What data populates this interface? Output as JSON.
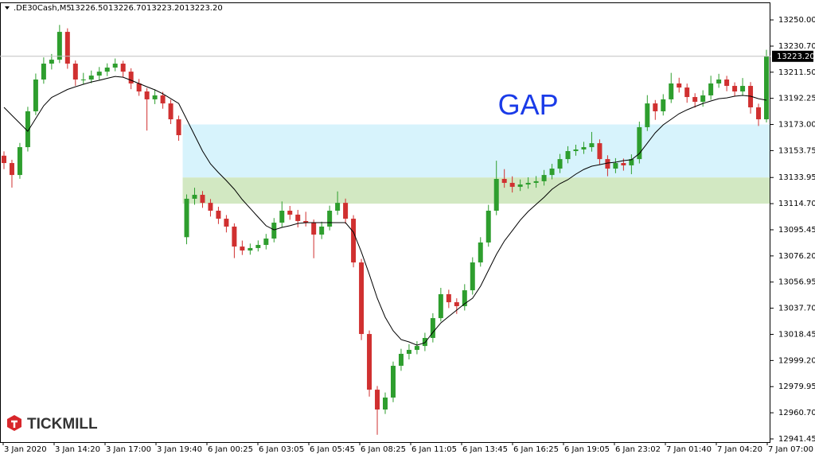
{
  "chart_data": {
    "type": "candlestick",
    "symbol": ".DE30Cash,M5",
    "header_values": [
      "13226.50",
      "13226.70",
      "13223.20",
      "13223.20"
    ],
    "brand": "TICKMILL",
    "ylim": [
      12939.1,
      13262.9
    ],
    "yticks": [
      {
        "value": 13250,
        "label": "13250.00"
      },
      {
        "value": 13230.7,
        "label": "13230.70"
      },
      {
        "value": 13211.5,
        "label": "13211.50"
      },
      13192.25,
      {
        "value": 13173,
        "label": "13173.00"
      },
      {
        "value": 13153.75,
        "label": "13153.75"
      },
      13133.95,
      {
        "value": 13114.7,
        "label": "13114.70"
      },
      13095.45,
      {
        "value": 13076.2,
        "label": "13076.20"
      },
      13056.95,
      {
        "value": 13037.7,
        "label": "13037.70"
      },
      {
        "value": 13018.45,
        "label": "13018.45"
      },
      {
        "value": 12999.2,
        "label": "12999.20"
      },
      {
        "value": 12979.95,
        "label": "12979.95"
      },
      {
        "value": 12960.7,
        "label": "12960.70"
      },
      12941.45
    ],
    "categories": [
      "3 Jan 2020",
      "3 Jan 14:20",
      "3 Jan 17:00",
      "3 Jan 19:40",
      "6 Jan 00:25",
      "6 Jan 03:05",
      "6 Jan 05:45",
      "6 Jan 08:25",
      "6 Jan 11:05",
      "6 Jan 13:45",
      "6 Jan 16:25",
      "6 Jan 19:05",
      "6 Jan 23:02",
      "7 Jan 01:40",
      "7 Jan 04:20",
      "7 Jan 07:00"
    ],
    "up_color": "#2e9e2e",
    "down_color": "#d03030",
    "ma_color": "#000000",
    "last_price": {
      "value": 13223.2,
      "label": "13223.20"
    },
    "zone_start": 23,
    "zones": [
      {
        "from": 13133.95,
        "to": 13173,
        "color": "#d7f3fc"
      },
      {
        "from": 13114.7,
        "to": 13133.95,
        "color": "#d2e8c2"
      }
    ],
    "annotations": [
      {
        "text": "GAP",
        "x": 66,
        "y": 13186,
        "color": "#1a3be8"
      }
    ],
    "ohlc": [
      [
        13150.0,
        13153.2,
        13140.1,
        13144.6
      ],
      [
        13144.6,
        13147.0,
        13126.5,
        13135.8
      ],
      [
        13135.8,
        13159.4,
        13133.0,
        13156.3
      ],
      [
        13156.3,
        13186.0,
        13153.1,
        13182.7
      ],
      [
        13182.7,
        13210.5,
        13179.9,
        13206.1
      ],
      [
        13206.1,
        13222.4,
        13203.0,
        13217.8
      ],
      [
        13217.8,
        13224.9,
        13213.5,
        13220.7
      ],
      [
        13220.7,
        13246.3,
        13218.2,
        13241.2
      ],
      [
        13241.2,
        13243.8,
        13214.0,
        13217.8
      ],
      [
        13217.8,
        13220.1,
        13201.5,
        13206.1
      ],
      [
        13206.1,
        13211.0,
        13202.3,
        13206.1
      ],
      [
        13206.1,
        13212.7,
        13203.4,
        13209.0
      ],
      [
        13209.0,
        13215.3,
        13205.8,
        13211.9
      ],
      [
        13211.9,
        13218.0,
        13208.6,
        13214.9
      ],
      [
        13214.9,
        13221.6,
        13212.2,
        13217.8
      ],
      [
        13217.8,
        13219.9,
        13208.1,
        13211.9
      ],
      [
        13211.9,
        13214.4,
        13199.0,
        13203.2
      ],
      [
        13203.2,
        13206.5,
        13194.1,
        13197.3
      ],
      [
        13197.3,
        13199.8,
        13168.5,
        13191.5
      ],
      [
        13191.5,
        13198.9,
        13188.0,
        13194.4
      ],
      [
        13194.4,
        13197.0,
        13184.6,
        13188.5
      ],
      [
        13188.5,
        13191.2,
        13173.3,
        13176.8
      ],
      [
        13176.8,
        13179.5,
        13161.0,
        13165.1
      ],
      [
        13090.0,
        13121.5,
        13084.8,
        13118.3
      ],
      [
        13118.3,
        13126.4,
        13113.9,
        13121.2
      ],
      [
        13121.2,
        13124.0,
        13111.6,
        13115.3
      ],
      [
        13115.3,
        13118.1,
        13105.2,
        13109.5
      ],
      [
        13109.5,
        13112.4,
        13099.7,
        13103.6
      ],
      [
        13103.6,
        13106.3,
        13093.5,
        13097.8
      ],
      [
        13097.8,
        13100.2,
        13074.6,
        13083.1
      ],
      [
        13083.1,
        13087.5,
        13076.9,
        13080.2
      ],
      [
        13080.2,
        13085.3,
        13077.1,
        13082.0
      ],
      [
        13082.0,
        13087.6,
        13079.5,
        13084.3
      ],
      [
        13084.3,
        13092.4,
        13081.0,
        13089.0
      ],
      [
        13089.0,
        13104.1,
        13086.2,
        13100.7
      ],
      [
        13100.7,
        13116.3,
        13097.5,
        13109.5
      ],
      [
        13109.5,
        13113.0,
        13102.8,
        13106.6
      ],
      [
        13106.6,
        13110.1,
        13097.2,
        13101.9
      ],
      [
        13101.9,
        13108.7,
        13097.9,
        13100.7
      ],
      [
        13100.7,
        13103.0,
        13074.5,
        13091.9
      ],
      [
        13091.9,
        13101.4,
        13088.6,
        13097.8
      ],
      [
        13097.8,
        13113.2,
        13095.0,
        13109.5
      ],
      [
        13109.5,
        13123.7,
        13106.4,
        13115.3
      ],
      [
        13115.3,
        13118.4,
        13099.9,
        13103.6
      ],
      [
        13103.6,
        13106.2,
        13067.8,
        13071.4
      ],
      [
        13071.4,
        13074.0,
        13014.2,
        13018.7
      ],
      [
        13018.7,
        13021.3,
        12972.6,
        12977.7
      ],
      [
        12977.7,
        12980.4,
        12944.5,
        12963.1
      ],
      [
        12963.1,
        12975.6,
        12959.8,
        12971.9
      ],
      [
        12971.9,
        12998.4,
        12968.5,
        12995.3
      ],
      [
        12995.3,
        13007.8,
        12991.6,
        13004.1
      ],
      [
        13004.1,
        13011.2,
        13000.0,
        13007.0
      ],
      [
        13007.0,
        13013.4,
        13003.8,
        13009.9
      ],
      [
        13009.9,
        13019.6,
        13006.1,
        13015.8
      ],
      [
        13015.8,
        13034.0,
        13012.5,
        13030.4
      ],
      [
        13030.4,
        13052.7,
        13027.9,
        13048.0
      ],
      [
        13048.0,
        13051.3,
        13037.8,
        13042.1
      ],
      [
        13042.1,
        13045.0,
        13033.5,
        13039.2
      ],
      [
        13039.2,
        13055.4,
        13036.0,
        13050.9
      ],
      [
        13050.9,
        13075.2,
        13047.7,
        13071.4
      ],
      [
        13071.4,
        13090.0,
        13068.3,
        13086.1
      ],
      [
        13086.1,
        13113.8,
        13083.0,
        13109.5
      ],
      [
        13109.5,
        13146.3,
        13106.2,
        13132.9
      ],
      [
        13132.9,
        13140.1,
        13126.4,
        13130.0
      ],
      [
        13130.0,
        13134.8,
        13122.9,
        13127.1
      ],
      [
        13127.1,
        13132.5,
        13124.0,
        13128.8
      ],
      [
        13128.8,
        13134.1,
        13125.7,
        13130.0
      ],
      [
        13130.0,
        13135.0,
        13126.4,
        13131.2
      ],
      [
        13131.2,
        13139.5,
        13128.0,
        13135.8
      ],
      [
        13135.8,
        13144.0,
        13132.6,
        13140.5
      ],
      [
        13140.5,
        13151.3,
        13137.2,
        13147.5
      ],
      [
        13147.5,
        13157.0,
        13144.4,
        13153.4
      ],
      [
        13153.4,
        13158.1,
        13150.0,
        13154.6
      ],
      [
        13154.6,
        13160.2,
        13151.3,
        13156.3
      ],
      [
        13156.3,
        13167.5,
        13153.0,
        13159.2
      ],
      [
        13159.2,
        13162.0,
        13143.6,
        13147.5
      ],
      [
        13147.5,
        13150.3,
        13134.9,
        13140.5
      ],
      [
        13140.5,
        13148.2,
        13137.1,
        13144.6
      ],
      [
        13144.6,
        13147.9,
        13139.0,
        13142.9
      ],
      [
        13142.9,
        13151.0,
        13136.4,
        13147.5
      ],
      [
        13147.5,
        13175.1,
        13144.3,
        13171.0
      ],
      [
        13171.0,
        13194.6,
        13168.2,
        13188.5
      ],
      [
        13188.5,
        13191.0,
        13176.4,
        13182.7
      ],
      [
        13182.7,
        13195.3,
        13179.6,
        13191.5
      ],
      [
        13191.5,
        13211.0,
        13188.8,
        13203.2
      ],
      [
        13203.2,
        13207.4,
        13196.5,
        13200.2
      ],
      [
        13200.2,
        13203.1,
        13189.0,
        13193.2
      ],
      [
        13193.2,
        13196.0,
        13185.4,
        13189.7
      ],
      [
        13189.7,
        13198.2,
        13186.1,
        13194.4
      ],
      [
        13194.4,
        13208.9,
        13191.2,
        13203.2
      ],
      [
        13203.2,
        13210.3,
        13200.0,
        13206.1
      ],
      [
        13206.1,
        13208.8,
        13197.5,
        13201.4
      ],
      [
        13201.4,
        13204.0,
        13193.6,
        13197.3
      ],
      [
        13197.3,
        13207.2,
        13194.1,
        13201.4
      ],
      [
        13201.4,
        13204.2,
        13181.0,
        13185.6
      ],
      [
        13185.6,
        13188.3,
        13171.9,
        13176.8
      ],
      [
        13176.8,
        13228.0,
        13174.5,
        13223.2
      ]
    ],
    "ma": [
      13185.6,
      13179.7,
      13173.9,
      13168.0,
      13177.4,
      13186.8,
      13192.9,
      13195.8,
      13198.8,
      13200.8,
      13202.6,
      13204.3,
      13205.5,
      13207.0,
      13208.4,
      13207.8,
      13205.5,
      13203.2,
      13200.8,
      13198.5,
      13195.6,
      13192.0,
      13188.5,
      13176.8,
      13165.1,
      13153.4,
      13144.0,
      13137.6,
      13131.7,
      13125.3,
      13117.7,
      13111.2,
      13104.8,
      13098.4,
      13095.4,
      13097.2,
      13098.4,
      13100.1,
      13100.7,
      13100.7,
      13100.7,
      13100.7,
      13100.7,
      13100.7,
      13093.7,
      13079.0,
      13062.6,
      13045.1,
      13031.0,
      13021.1,
      13014.6,
      13012.9,
      13010.5,
      13012.3,
      13019.9,
      13026.9,
      13031.6,
      13036.3,
      13041.0,
      13045.1,
      13053.9,
      13065.6,
      13077.3,
      13087.2,
      13094.8,
      13102.5,
      13108.9,
      13114.2,
      13119.4,
      13125.3,
      13129.4,
      13132.3,
      13136.4,
      13139.9,
      13142.3,
      13143.4,
      13144.6,
      13145.2,
      13146.4,
      13147.0,
      13151.6,
      13159.2,
      13166.9,
      13172.7,
      13176.8,
      13180.9,
      13183.8,
      13186.2,
      13188.5,
      13190.3,
      13192.0,
      13192.6,
      13193.8,
      13194.4,
      13193.8,
      13192.0,
      13190.9
    ]
  }
}
